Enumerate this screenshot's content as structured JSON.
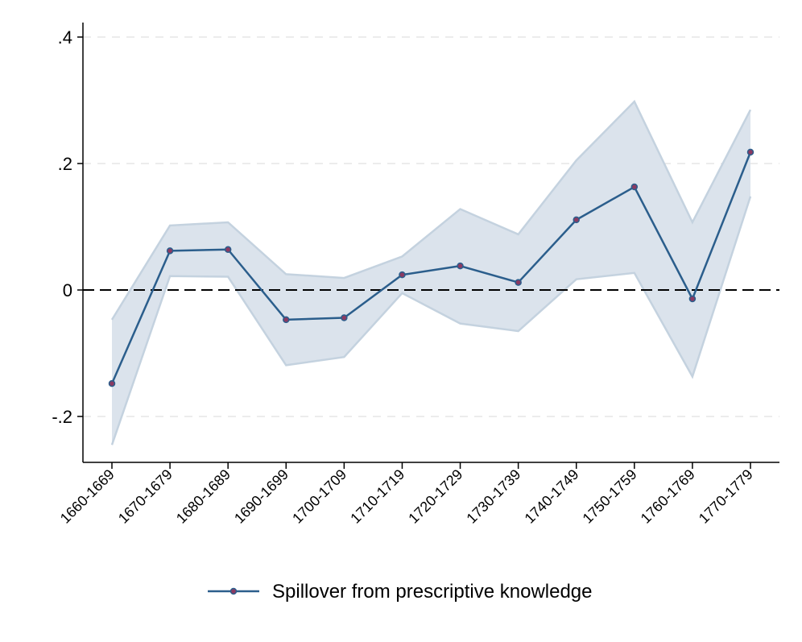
{
  "chart_data": {
    "type": "line",
    "categories": [
      "1660-1669",
      "1670-1679",
      "1680-1689",
      "1690-1699",
      "1700-1709",
      "1710-1719",
      "1720-1729",
      "1730-1739",
      "1740-1749",
      "1750-1759",
      "1760-1769",
      "1770-1779"
    ],
    "series": [
      {
        "name": "Spillover from prescriptive knowledge",
        "values": [
          -0.148,
          0.062,
          0.064,
          -0.047,
          -0.044,
          0.024,
          0.038,
          0.012,
          0.111,
          0.163,
          -0.014,
          0.218
        ],
        "ci_upper": [
          -0.047,
          0.102,
          0.107,
          0.025,
          0.019,
          0.053,
          0.128,
          0.088,
          0.205,
          0.298,
          0.107,
          0.285
        ],
        "ci_lower": [
          -0.245,
          0.022,
          0.021,
          -0.119,
          -0.106,
          -0.005,
          -0.053,
          -0.065,
          0.017,
          0.027,
          -0.137,
          0.148
        ]
      }
    ],
    "yticks": [
      -0.2,
      0,
      0.2,
      0.4
    ],
    "ytick_labels": [
      "-.2",
      "0",
      ".2",
      ".4"
    ],
    "ylim": [
      -0.272,
      0.42
    ],
    "reference_line": 0,
    "grid": true,
    "legend_position": "bottom",
    "colors": {
      "line": "#2b5e8c",
      "marker_fill": "#8b3a62",
      "ci_fill": "#dbe3ec",
      "ci_edge": "#c4d2df",
      "grid": "#e6e6e6",
      "reference": "#000000"
    }
  }
}
